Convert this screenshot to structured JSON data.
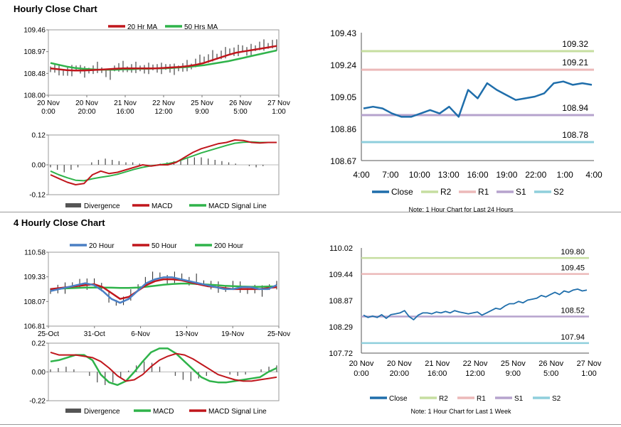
{
  "titles": {
    "hourly": "Hourly Close Chart",
    "four_hourly": "4 Hourly Close Chart"
  },
  "colors": {
    "close": "#1f6eab",
    "ma_red": "#c0161c",
    "ma_green": "#2fb34a",
    "ma_blue": "#4a7fc4",
    "r2": "#c6dea0",
    "r1": "#ecb9b9",
    "s1": "#b6a3cd",
    "s2": "#8fcfdc",
    "divergence": "#555555"
  },
  "chart_data": [
    {
      "id": "hourly_price",
      "type": "line",
      "title": "Hourly Close Chart",
      "x_tick_labels": [
        [
          "20 Nov",
          "0:00"
        ],
        [
          "20 Nov",
          "20:00"
        ],
        [
          "21 Nov",
          "16:00"
        ],
        [
          "22 Nov",
          "12:00"
        ],
        [
          "25 Nov",
          "9:00"
        ],
        [
          "26 Nov",
          "5:00"
        ],
        [
          "27 Nov",
          "1:00"
        ]
      ],
      "y_tick_labels": [
        "109.46",
        "108.97",
        "108.48",
        "108.00"
      ],
      "ylim": [
        108.0,
        109.46
      ],
      "legend": [
        "20 Hr MA",
        "50 Hrs MA"
      ],
      "series": [
        {
          "name": "Price",
          "style": "bars",
          "values": [
            108.58,
            108.6,
            108.57,
            108.5,
            108.53,
            108.55,
            108.6,
            108.58,
            108.52,
            108.55,
            108.57,
            108.62,
            108.56,
            108.5,
            108.47,
            108.6,
            108.62,
            108.64,
            108.58,
            108.6,
            108.62,
            108.6,
            108.58,
            108.6,
            108.62,
            108.6,
            108.6,
            108.63,
            108.6,
            108.58,
            108.6,
            108.62,
            108.66,
            108.64,
            108.72,
            108.78,
            108.8,
            108.82,
            108.88,
            108.86,
            108.9,
            108.95,
            108.98,
            108.97,
            109.0,
            109.05,
            108.98,
            109.02,
            109.05,
            109.1,
            109.12,
            109.1,
            109.14,
            109.12
          ]
        },
        {
          "name": "20 Hr MA",
          "values": [
            108.6,
            108.58,
            108.56,
            108.55,
            108.55,
            108.56,
            108.57,
            108.58,
            108.59,
            108.6,
            108.6,
            108.6,
            108.6,
            108.6,
            108.61,
            108.62,
            108.63,
            108.65,
            108.68,
            108.72,
            108.78,
            108.84,
            108.9,
            108.95,
            108.98,
            109.01,
            109.04,
            109.07,
            109.1
          ]
        },
        {
          "name": "50 Hrs MA",
          "values": [
            108.72,
            108.68,
            108.64,
            108.61,
            108.59,
            108.58,
            108.57,
            108.57,
            108.57,
            108.58,
            108.58,
            108.59,
            108.59,
            108.6,
            108.6,
            108.61,
            108.62,
            108.63,
            108.65,
            108.67,
            108.7,
            108.73,
            108.76,
            108.8,
            108.84,
            108.88,
            108.92,
            108.96,
            109.0
          ]
        }
      ]
    },
    {
      "id": "hourly_macd",
      "type": "line",
      "y_tick_labels": [
        "0.12",
        "0.00",
        "-0.12"
      ],
      "ylim": [
        -0.12,
        0.12
      ],
      "legend": [
        "Divergence",
        "MACD",
        "MACD Signal Line"
      ],
      "series": [
        {
          "name": "Divergence",
          "style": "bars",
          "values": [
            -0.01,
            -0.02,
            -0.03,
            -0.02,
            -0.01,
            0.0,
            0.01,
            0.02,
            0.025,
            0.02,
            0.015,
            0.01,
            0.01,
            0.005,
            0.0,
            0.0,
            0.005,
            0.01,
            0.015,
            0.02,
            0.025,
            0.03,
            0.03,
            0.025,
            0.02,
            0.015,
            0.01,
            0.005,
            0.0,
            -0.005,
            -0.01,
            -0.005,
            0.0,
            0.0
          ]
        },
        {
          "name": "MACD",
          "values": [
            -0.04,
            -0.055,
            -0.07,
            -0.08,
            -0.075,
            -0.04,
            -0.025,
            -0.035,
            -0.03,
            -0.02,
            -0.01,
            0.0,
            -0.005,
            0.0,
            0.0,
            0.01,
            0.03,
            0.05,
            0.065,
            0.075,
            0.085,
            0.09,
            0.1,
            0.098,
            0.09,
            0.088,
            0.09,
            0.09
          ]
        },
        {
          "name": "MACD Signal Line",
          "values": [
            -0.025,
            -0.04,
            -0.052,
            -0.062,
            -0.064,
            -0.056,
            -0.05,
            -0.045,
            -0.038,
            -0.028,
            -0.018,
            -0.01,
            -0.004,
            0.0,
            0.005,
            0.012,
            0.024,
            0.036,
            0.048,
            0.058,
            0.068,
            0.078,
            0.087,
            0.091,
            0.092,
            0.09,
            0.09,
            0.09
          ]
        }
      ]
    },
    {
      "id": "hourly_levels",
      "type": "line",
      "x_tick_labels": [
        "4:00",
        "7:00",
        "10:00",
        "13:00",
        "16:00",
        "19:00",
        "22:00",
        "1:00",
        "4:00"
      ],
      "y_tick_labels": [
        "109.43",
        "109.24",
        "109.05",
        "108.86",
        "108.67"
      ],
      "ylim": [
        108.67,
        109.43
      ],
      "levels": {
        "R2": 109.32,
        "R1": 109.21,
        "S1": 108.94,
        "S2": 108.78
      },
      "level_labels": {
        "R2": "109.32",
        "R1": "109.21",
        "S1": "108.94",
        "S2": "108.78"
      },
      "legend": [
        "Close",
        "R2",
        "R1",
        "S1",
        "S2"
      ],
      "note": "Note: 1 Hour Chart for Last 24 Hours",
      "series": [
        {
          "name": "Close",
          "values": [
            108.98,
            108.99,
            108.98,
            108.95,
            108.93,
            108.93,
            108.95,
            108.97,
            108.95,
            108.99,
            108.93,
            109.09,
            109.04,
            109.13,
            109.09,
            109.06,
            109.03,
            109.04,
            109.05,
            109.07,
            109.13,
            109.14,
            109.12,
            109.13,
            109.12
          ]
        }
      ]
    },
    {
      "id": "four_hourly_price",
      "type": "line",
      "title": "4 Hourly Close Chart",
      "x_tick_labels": [
        "25-Oct",
        "31-Oct",
        "6-Nov",
        "13-Nov",
        "19-Nov",
        "25-Nov"
      ],
      "y_tick_labels": [
        "110.58",
        "109.33",
        "108.07",
        "106.81"
      ],
      "ylim": [
        106.81,
        110.58
      ],
      "legend": [
        "20 Hour",
        "50 Hour",
        "200 Hour"
      ],
      "series": [
        {
          "name": "Price",
          "style": "bars",
          "values": [
            108.6,
            108.7,
            108.75,
            108.9,
            109.0,
            108.95,
            109.1,
            108.8,
            108.3,
            108.0,
            108.1,
            108.4,
            108.8,
            109.1,
            109.3,
            109.4,
            109.2,
            109.3,
            109.35,
            109.1,
            109.2,
            109.0,
            108.9,
            108.8,
            108.7,
            108.9,
            108.8,
            108.6,
            108.7,
            108.6,
            108.8,
            108.9
          ]
        },
        {
          "name": "20 Hour",
          "values": [
            108.6,
            108.7,
            108.8,
            108.9,
            109.0,
            108.9,
            108.6,
            108.2,
            108.0,
            108.2,
            108.6,
            109.0,
            109.2,
            109.3,
            109.3,
            109.2,
            109.1,
            109.0,
            108.9,
            108.8,
            108.7,
            108.7,
            108.8,
            108.8,
            108.7,
            108.7,
            108.9
          ]
        },
        {
          "name": "50 Hour",
          "values": [
            108.7,
            108.75,
            108.8,
            108.85,
            108.9,
            108.95,
            108.8,
            108.5,
            108.2,
            108.3,
            108.6,
            108.9,
            109.1,
            109.2,
            109.2,
            109.15,
            109.05,
            108.95,
            108.85,
            108.8,
            108.75,
            108.7,
            108.7,
            108.7,
            108.7,
            108.75,
            108.8
          ]
        },
        {
          "name": "200 Hour",
          "values": [
            108.7,
            108.72,
            108.74,
            108.76,
            108.78,
            108.78,
            108.78,
            108.77,
            108.76,
            108.76,
            108.78,
            108.82,
            108.87,
            108.92,
            108.96,
            108.98,
            108.98,
            108.96,
            108.93,
            108.9,
            108.87,
            108.85,
            108.83,
            108.82,
            108.82,
            108.83,
            108.84
          ]
        }
      ]
    },
    {
      "id": "four_hourly_macd",
      "type": "line",
      "y_tick_labels": [
        "0.22",
        "0.00",
        "-0.22"
      ],
      "ylim": [
        -0.22,
        0.22
      ],
      "legend": [
        "Divergence",
        "MACD",
        "MACD Signal Line"
      ],
      "series": [
        {
          "name": "Divergence",
          "style": "bars",
          "values": [
            0.02,
            0.03,
            0.04,
            0.02,
            0.0,
            -0.03,
            -0.08,
            -0.1,
            -0.08,
            -0.04,
            0.01,
            0.05,
            0.08,
            0.07,
            0.04,
            0.0,
            -0.03,
            -0.06,
            -0.07,
            -0.05,
            -0.03,
            -0.01,
            0.0,
            -0.02,
            -0.03,
            -0.02,
            0.0,
            0.02,
            0.04,
            0.05
          ]
        },
        {
          "name": "MACD",
          "values": [
            0.08,
            0.09,
            0.11,
            0.13,
            0.13,
            0.09,
            -0.02,
            -0.08,
            -0.1,
            -0.07,
            0.0,
            0.08,
            0.15,
            0.18,
            0.18,
            0.14,
            0.08,
            0.02,
            -0.04,
            -0.07,
            -0.08,
            -0.08,
            -0.07,
            -0.06,
            -0.05,
            -0.04,
            0.0,
            0.03
          ]
        },
        {
          "name": "MACD Signal Line",
          "values": [
            0.15,
            0.13,
            0.13,
            0.13,
            0.12,
            0.11,
            0.08,
            0.03,
            -0.03,
            -0.07,
            -0.06,
            -0.02,
            0.04,
            0.09,
            0.12,
            0.14,
            0.13,
            0.1,
            0.06,
            0.02,
            -0.02,
            -0.04,
            -0.06,
            -0.07,
            -0.07,
            -0.06,
            -0.05,
            -0.04
          ]
        }
      ]
    },
    {
      "id": "four_hourly_levels",
      "type": "line",
      "x_tick_labels": [
        [
          "20 Nov",
          "0:00"
        ],
        [
          "20 Nov",
          "20:00"
        ],
        [
          "21 Nov",
          "16:00"
        ],
        [
          "22 Nov",
          "12:00"
        ],
        [
          "25 Nov",
          "9:00"
        ],
        [
          "26 Nov",
          "5:00"
        ],
        [
          "27 Nov",
          "1:00"
        ]
      ],
      "y_tick_labels": [
        "110.02",
        "109.44",
        "108.87",
        "108.29",
        "107.72"
      ],
      "ylim": [
        107.72,
        110.02
      ],
      "levels": {
        "R2": 109.8,
        "R1": 109.45,
        "S1": 108.52,
        "S2": 107.94
      },
      "level_labels": {
        "R2": "109.80",
        "R1": "109.45",
        "S1": "108.52",
        "S2": "107.94"
      },
      "legend": [
        "Close",
        "R2",
        "R1",
        "S1",
        "S2"
      ],
      "note": "Note: 1 Hour Chart for Last 1 Week",
      "series": [
        {
          "name": "Close",
          "values": [
            108.55,
            108.5,
            108.53,
            108.5,
            108.56,
            108.48,
            108.56,
            108.58,
            108.6,
            108.65,
            108.52,
            108.45,
            108.55,
            108.6,
            108.6,
            108.58,
            108.62,
            108.6,
            108.63,
            108.6,
            108.65,
            108.62,
            108.6,
            108.58,
            108.6,
            108.62,
            108.55,
            108.6,
            108.65,
            108.7,
            108.68,
            108.75,
            108.8,
            108.8,
            108.85,
            108.82,
            108.88,
            108.9,
            108.92,
            108.98,
            108.95,
            109.0,
            109.05,
            109.0,
            109.08,
            109.05,
            109.1,
            109.12,
            109.08,
            109.1
          ]
        }
      ]
    }
  ]
}
